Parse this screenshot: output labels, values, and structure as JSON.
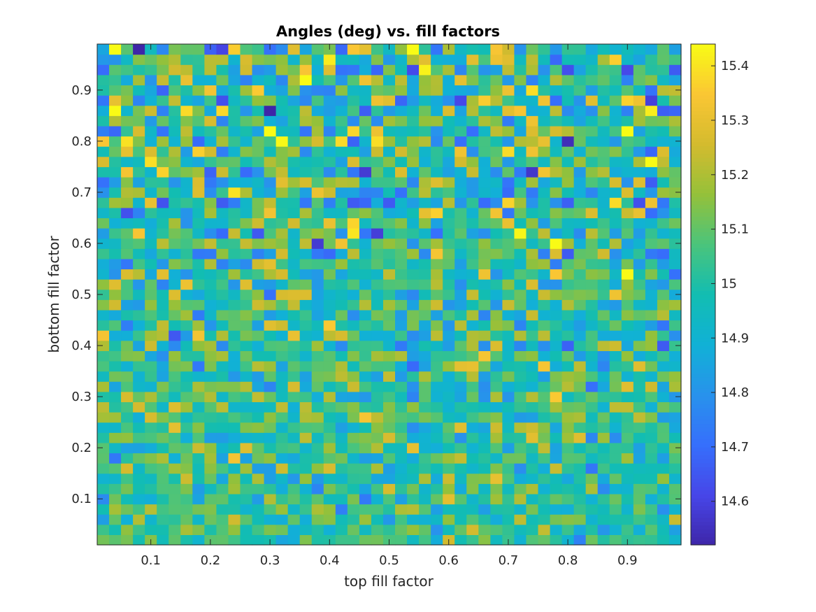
{
  "chart_data": {
    "type": "heatmap",
    "title": "Angles (deg) vs. fill factors",
    "xlabel": "top fill factor",
    "ylabel": "bottom fill factor",
    "xlim": [
      0.01,
      0.99
    ],
    "ylim": [
      0.01,
      0.99
    ],
    "x_ticks": [
      "0.1",
      "0.2",
      "0.3",
      "0.4",
      "0.5",
      "0.6",
      "0.7",
      "0.8",
      "0.9"
    ],
    "y_ticks": [
      "0.1",
      "0.2",
      "0.3",
      "0.4",
      "0.5",
      "0.6",
      "0.7",
      "0.8",
      "0.9"
    ],
    "grid_size": [
      49,
      49
    ],
    "x_start": 0.02,
    "x_step": 0.02,
    "y_start": 0.02,
    "y_step": 0.02,
    "value_range": [
      14.52,
      15.44
    ],
    "colorbar": {
      "ticks": [
        "14.6",
        "14.7",
        "14.8",
        "14.9",
        "15",
        "15.1",
        "15.2",
        "15.3",
        "15.4"
      ],
      "colormap": "parula",
      "position": "right"
    },
    "grid": false,
    "values_note": "random-looking field around 15 deg; smaller spread near bottom, larger spread toward top"
  }
}
